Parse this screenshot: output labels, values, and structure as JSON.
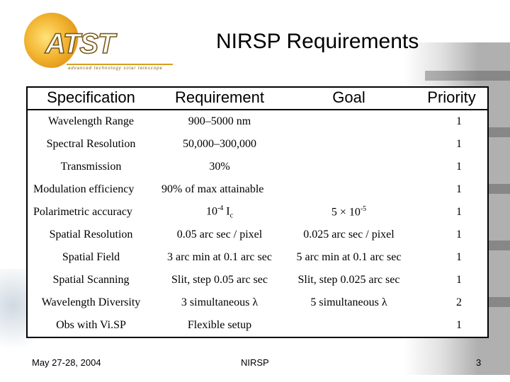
{
  "logo": {
    "text": "ATST",
    "subtitle": "advanced technology solar telescope"
  },
  "title": "NIRSP Requirements",
  "table": {
    "headers": [
      "Specification",
      "Requirement",
      "Goal",
      "Priority"
    ],
    "rows": [
      {
        "spec": "Wavelength Range",
        "req": "900–5000 nm",
        "goal": "",
        "priority": "1"
      },
      {
        "spec": "Spectral Resolution",
        "req": "50,000–300,000",
        "goal": "",
        "priority": "1"
      },
      {
        "spec": "Transmission",
        "req": "30%",
        "goal": "",
        "priority": "1"
      },
      {
        "spec": "Modulation efficiency",
        "req": "90% of max attainable",
        "goal": "",
        "priority": "1"
      },
      {
        "spec": "Polarimetric accuracy",
        "req_base": "10",
        "req_sup": "-4",
        "req_mid": " I",
        "req_sub": "c",
        "goal_base": "5 × 10",
        "goal_sup": "-5",
        "priority": "1"
      },
      {
        "spec": "Spatial Resolution",
        "req": "0.05 arc sec / pixel",
        "goal": "0.025 arc sec / pixel",
        "priority": "1"
      },
      {
        "spec": "Spatial Field",
        "req": "3 arc min at 0.1 arc sec",
        "goal": "5 arc min at 0.1 arc sec",
        "priority": "1"
      },
      {
        "spec": "Spatial Scanning",
        "req": "Slit, step 0.05 arc sec",
        "goal": "Slit, step 0.025 arc sec",
        "priority": "1"
      },
      {
        "spec": "Wavelength Diversity",
        "req": "3 simultaneous λ",
        "goal": "5 simultaneous λ",
        "priority": "2"
      },
      {
        "spec": "Obs with Vi.SP",
        "req": "Flexible setup",
        "goal": "",
        "priority": "1"
      }
    ]
  },
  "footer": {
    "date": "May 27-28, 2004",
    "center": "NIRSP",
    "page": "3"
  }
}
